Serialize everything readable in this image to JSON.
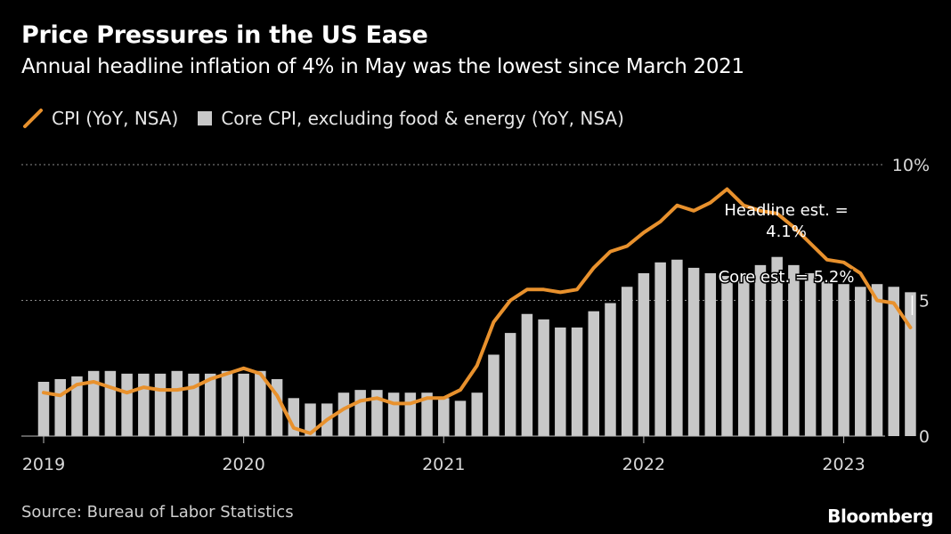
{
  "header": {
    "title": "Price Pressures in the US Ease",
    "subtitle": "Annual headline inflation of 4% in May was the lowest since March 2021"
  },
  "footer": {
    "source": "Source: Bureau of Labor Statistics",
    "brand": "Bloomberg"
  },
  "colors": {
    "cpi_line": "#e8912d",
    "core_bars": "#c8c8c8",
    "background": "#000000"
  },
  "chart_data": {
    "type": "bar",
    "ylim": [
      0,
      10
    ],
    "y_ticks": [
      {
        "value": 10,
        "label": "10%"
      },
      {
        "value": 5,
        "label": "5"
      },
      {
        "value": 0,
        "label": "0"
      }
    ],
    "grid": "dotted horizontal lines at 5 and 10",
    "x_ticks": [
      {
        "date": "2019-01",
        "label": "2019"
      },
      {
        "date": "2020-01",
        "label": "2020"
      },
      {
        "date": "2021-01",
        "label": "2021"
      },
      {
        "date": "2022-01",
        "label": "2022"
      },
      {
        "date": "2023-01",
        "label": "2023"
      }
    ],
    "legend_position": "top-left",
    "categories": [
      "2019-01",
      "2019-02",
      "2019-03",
      "2019-04",
      "2019-05",
      "2019-06",
      "2019-07",
      "2019-08",
      "2019-09",
      "2019-10",
      "2019-11",
      "2019-12",
      "2020-01",
      "2020-02",
      "2020-03",
      "2020-04",
      "2020-05",
      "2020-06",
      "2020-07",
      "2020-08",
      "2020-09",
      "2020-10",
      "2020-11",
      "2020-12",
      "2021-01",
      "2021-02",
      "2021-03",
      "2021-04",
      "2021-05",
      "2021-06",
      "2021-07",
      "2021-08",
      "2021-09",
      "2021-10",
      "2021-11",
      "2021-12",
      "2022-01",
      "2022-02",
      "2022-03",
      "2022-04",
      "2022-05",
      "2022-06",
      "2022-07",
      "2022-08",
      "2022-09",
      "2022-10",
      "2022-11",
      "2022-12",
      "2023-01",
      "2023-02",
      "2023-03",
      "2023-04",
      "2023-05"
    ],
    "series": [
      {
        "name": "CPI (YoY, NSA)",
        "type": "line",
        "values": [
          1.6,
          1.5,
          1.9,
          2.0,
          1.8,
          1.6,
          1.8,
          1.7,
          1.7,
          1.8,
          2.1,
          2.3,
          2.5,
          2.3,
          1.5,
          0.3,
          0.1,
          0.6,
          1.0,
          1.3,
          1.4,
          1.2,
          1.2,
          1.4,
          1.4,
          1.7,
          2.6,
          4.2,
          5.0,
          5.4,
          5.4,
          5.3,
          5.4,
          6.2,
          6.8,
          7.0,
          7.5,
          7.9,
          8.5,
          8.3,
          8.6,
          9.1,
          8.5,
          8.3,
          8.2,
          7.7,
          7.1,
          6.5,
          6.4,
          6.0,
          5.0,
          4.9,
          4.0
        ]
      },
      {
        "name": "Core CPI, excluding food & energy (YoY, NSA)",
        "type": "bar",
        "values": [
          2.0,
          2.1,
          2.2,
          2.4,
          2.4,
          2.3,
          2.3,
          2.3,
          2.4,
          2.3,
          2.3,
          2.4,
          2.3,
          2.4,
          2.1,
          1.4,
          1.2,
          1.2,
          1.6,
          1.7,
          1.7,
          1.6,
          1.6,
          1.6,
          1.4,
          1.3,
          1.6,
          3.0,
          3.8,
          4.5,
          4.3,
          4.0,
          4.0,
          4.6,
          4.9,
          5.5,
          6.0,
          6.4,
          6.5,
          6.2,
          6.0,
          5.9,
          5.9,
          6.3,
          6.6,
          6.3,
          6.0,
          5.7,
          5.6,
          5.5,
          5.6,
          5.5,
          5.3
        ]
      }
    ],
    "annotations": [
      {
        "text_line1": "Headline est. =",
        "text_line2": "4.1%",
        "target": "CPI (YoY, NSA)",
        "date": "2023-05"
      },
      {
        "text_line1": "Core est. = 5.2%",
        "target": "Core CPI, excluding food & energy (YoY, NSA)",
        "date": "2023-05"
      }
    ]
  }
}
